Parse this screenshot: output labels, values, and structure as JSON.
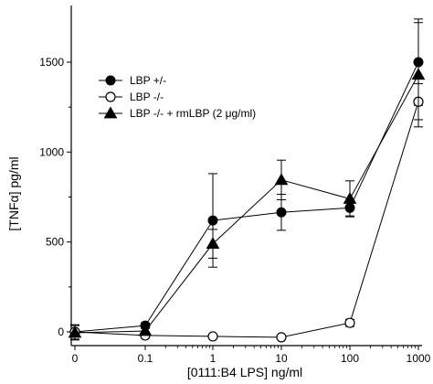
{
  "chart_data": {
    "type": "line",
    "title": "",
    "xlabel": "[0111:B4 LPS] ng/ml",
    "ylabel": "[TNFα] pg/ml",
    "x_scale": "categorical-log",
    "categories": [
      "0",
      "0.1",
      "1",
      "10",
      "100",
      "1000"
    ],
    "ylim": [
      -50,
      1600
    ],
    "yticks": [
      0,
      500,
      1000,
      1500
    ],
    "grid": false,
    "legend_position": "top-left",
    "series": [
      {
        "name": "LBP +/-",
        "marker": "filled-circle",
        "values": [
          0,
          35,
          620,
          665,
          690,
          1500
        ],
        "errors": [
          null,
          15,
          260,
          100,
          45,
          240
        ]
      },
      {
        "name": "LBP -/-",
        "marker": "open-circle",
        "values": [
          0,
          -20,
          -25,
          -30,
          50,
          1280
        ],
        "errors": [
          40,
          10,
          10,
          10,
          20,
          100
        ]
      },
      {
        "name": "LBP -/- + rmLBP (2 μg/ml)",
        "marker": "filled-triangle",
        "values": [
          -5,
          5,
          490,
          845,
          740,
          1430
        ],
        "errors": [
          40,
          15,
          80,
          110,
          100,
          290
        ]
      }
    ]
  }
}
